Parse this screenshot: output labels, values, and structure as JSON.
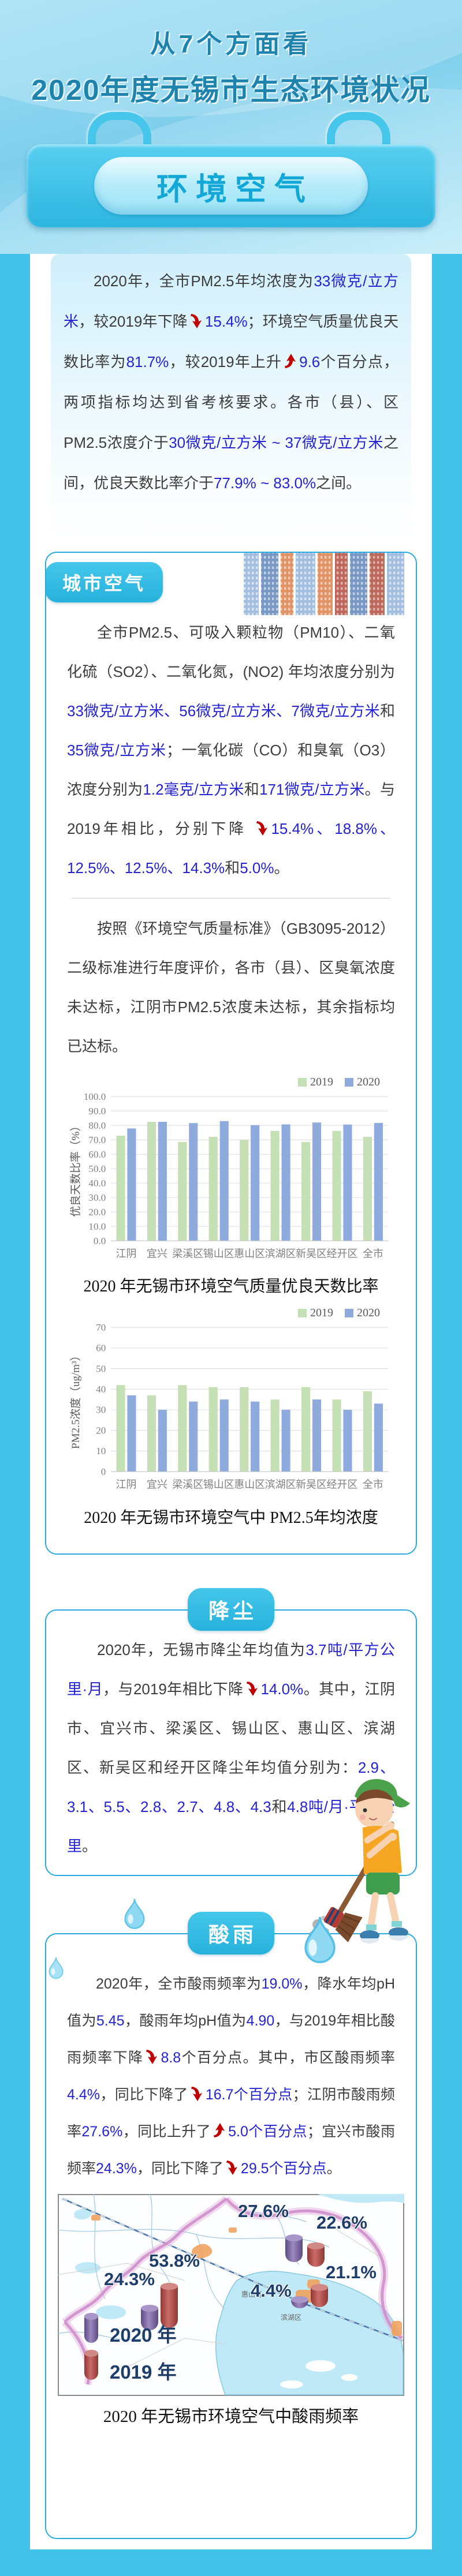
{
  "header": {
    "title_line1": "从7个方面看",
    "title_line2": "2020年度无锡市生态环境状况",
    "banner_label": "环境空气"
  },
  "colors": {
    "background_cyan": "#3fc1e8",
    "card_border_blue": "#29abe2",
    "number_blue": "#2423d6",
    "arrow_red": "#c00000",
    "series_2019_green": "#c5e0b4",
    "series_2020_blue": "#8faadc"
  },
  "intro_paragraph": {
    "segments": [
      {
        "t": "2020年，全市PM2.5年均浓度为"
      },
      {
        "t": "33微克/立方米",
        "c": "blue"
      },
      {
        "t": "，较2019年下降"
      },
      {
        "arrow": "down"
      },
      {
        "t": "15.4%",
        "c": "blue"
      },
      {
        "t": "；环境空气质量优良天数比率为"
      },
      {
        "t": "81.7%",
        "c": "blue"
      },
      {
        "t": "，较2019年上升"
      },
      {
        "arrow": "up"
      },
      {
        "t": "9.6",
        "c": "blue"
      },
      {
        "t": "个百分点，两项指标均达到省考核要求。各市（县）、区PM2.5浓度介于"
      },
      {
        "t": "30微克/立方米 ~ 37微克/立方米",
        "c": "blue"
      },
      {
        "t": "之间，优良天数比率介于"
      },
      {
        "t": "77.9% ~ 83.0%",
        "c": "blue"
      },
      {
        "t": "之间。"
      }
    ]
  },
  "city_air": {
    "badge": "城市空气",
    "para1": {
      "segments": [
        {
          "t": "全市PM2.5、可吸入颗粒物（PM10）、二氧化硫（SO2）、二氧化氮，(NO2) 年均浓度分别为"
        },
        {
          "t": "33微克/立方米、56微克/立方米、7微克/立方米",
          "c": "blue"
        },
        {
          "t": "和"
        },
        {
          "t": "35微克/立方米",
          "c": "blue"
        },
        {
          "t": "；一氧化碳（CO）和臭氧（O3）浓度分别为"
        },
        {
          "t": "1.2毫克/立方米",
          "c": "blue"
        },
        {
          "t": "和"
        },
        {
          "t": "171微克/立方米",
          "c": "blue"
        },
        {
          "t": "。与2019年相比，分别下降 "
        },
        {
          "arrow": "down"
        },
        {
          "t": "15.4%、18.8%、12.5%、12.5%、14.3%",
          "c": "blue"
        },
        {
          "t": "和"
        },
        {
          "t": "5.0%",
          "c": "blue"
        },
        {
          "t": "。"
        }
      ]
    },
    "para2": {
      "segments": [
        {
          "t": "按照《环境空气质量标准》（GB3095-2012）二级标准进行年度评价，各市（县）、区臭氧浓度未达标，江阴市PM2.5浓度未达标，其余指标均已达标。"
        }
      ]
    }
  },
  "chart_data": [
    {
      "type": "bar",
      "title": "2020 年无锡市环境空气质量优良天数比率",
      "categories": [
        "江阴",
        "宜兴",
        "梁溪区",
        "锡山区",
        "惠山区",
        "滨湖区",
        "新吴区",
        "经开区",
        "全市"
      ],
      "series": [
        {
          "name": "2019",
          "color": "#c5e0b4",
          "values": [
            72.9,
            82.5,
            68.5,
            72.1,
            69.9,
            76.2,
            68.5,
            76.2,
            72.1
          ]
        },
        {
          "name": "2020",
          "color": "#8faadc",
          "values": [
            77.9,
            82.5,
            81.6,
            83.0,
            80.2,
            80.7,
            82.0,
            80.6,
            81.7
          ]
        }
      ],
      "xlabel": "",
      "ylabel": "优良天数比率（%）",
      "ylim": [
        0,
        100
      ],
      "ytick_step": 10,
      "ytick_decimals": 1,
      "grid": true,
      "legend_position": "top-right"
    },
    {
      "type": "bar",
      "title": "2020 年无锡市环境空气中 PM2.5年均浓度",
      "categories": [
        "江阴",
        "宜兴",
        "梁溪区",
        "锡山区",
        "惠山区",
        "滨湖区",
        "新吴区",
        "经开区",
        "全市"
      ],
      "series": [
        {
          "name": "2019",
          "color": "#c5e0b4",
          "values": [
            42,
            37,
            42,
            41,
            41,
            35,
            41,
            35,
            39
          ]
        },
        {
          "name": "2020",
          "color": "#8faadc",
          "values": [
            37,
            30,
            34,
            35,
            34,
            30,
            35,
            30,
            33
          ]
        }
      ],
      "xlabel": "",
      "ylabel": "PM2.5浓度（ug/m³）",
      "ylim": [
        0,
        70
      ],
      "ytick_step": 10,
      "ytick_decimals": 0,
      "grid": true,
      "legend_position": "top-right"
    }
  ],
  "dustfall": {
    "badge": "降尘",
    "para": {
      "segments": [
        {
          "t": "2020年，无锡市降尘年均值为"
        },
        {
          "t": "3.7吨/平方公里·月",
          "c": "blue"
        },
        {
          "t": "，与2019年相比下降"
        },
        {
          "arrow": "down"
        },
        {
          "t": "14.0%",
          "c": "blue"
        },
        {
          "t": "。其中，江阴市、宜兴市、梁溪区、锡山区、惠山区、滨湖区、新吴区和经开区降尘年均值分别为："
        },
        {
          "t": "2.9、3.1、5.5、2.8、2.7、4.8、4.3",
          "c": "blue"
        },
        {
          "t": "和"
        },
        {
          "t": "4.8吨/月·平方公里",
          "c": "blue"
        },
        {
          "t": "。"
        }
      ]
    }
  },
  "acid_rain": {
    "badge": "酸雨",
    "para": {
      "segments": [
        {
          "t": "2020年，全市酸雨频率为"
        },
        {
          "t": "19.0%",
          "c": "blue"
        },
        {
          "t": "，降水年均pH值为"
        },
        {
          "t": "5.45",
          "c": "blue"
        },
        {
          "t": "，酸雨年均pH值为"
        },
        {
          "t": "4.90",
          "c": "blue"
        },
        {
          "t": "，与2019年相比酸雨频率下降"
        },
        {
          "arrow": "down"
        },
        {
          "t": "8.8",
          "c": "blue"
        },
        {
          "t": "个百分点。其中，市区酸雨频率"
        },
        {
          "t": "4.4%",
          "c": "blue"
        },
        {
          "t": "，同比下降了"
        },
        {
          "arrow": "down"
        },
        {
          "t": "16.7个百分点",
          "c": "blue"
        },
        {
          "t": "；江阴市酸雨频率"
        },
        {
          "t": "27.6%",
          "c": "blue"
        },
        {
          "t": "，同比上升了"
        },
        {
          "arrow": "up"
        },
        {
          "t": "5.0个百分点",
          "c": "blue"
        },
        {
          "t": "；宜兴市酸雨频率"
        },
        {
          "t": "24.3%",
          "c": "blue"
        },
        {
          "t": "，同比下降了"
        },
        {
          "arrow": "down"
        },
        {
          "t": "29.5个百分点",
          "c": "blue"
        },
        {
          "t": "。"
        }
      ]
    },
    "map": {
      "caption": "2020 年无锡市环境空气中酸雨频率",
      "area_labels": [
        "惠山区",
        "滨湖区"
      ],
      "legend": [
        {
          "label": "2020 年",
          "color_name": "purple"
        },
        {
          "label": "2019 年",
          "color_name": "red"
        }
      ],
      "markers": [
        {
          "area": "江阴市",
          "label2020": "27.6%",
          "v2020": 27.6,
          "label2019": "22.6%",
          "v2019": 22.6
        },
        {
          "area": "市区",
          "label2020": "4.4%",
          "v2020": 4.4,
          "label2019": "21.1%",
          "v2019": 21.1
        },
        {
          "area": "宜兴市",
          "label2020": "24.3%",
          "v2020": 24.3,
          "label2019": "53.8%",
          "v2019": 53.8
        }
      ]
    }
  }
}
